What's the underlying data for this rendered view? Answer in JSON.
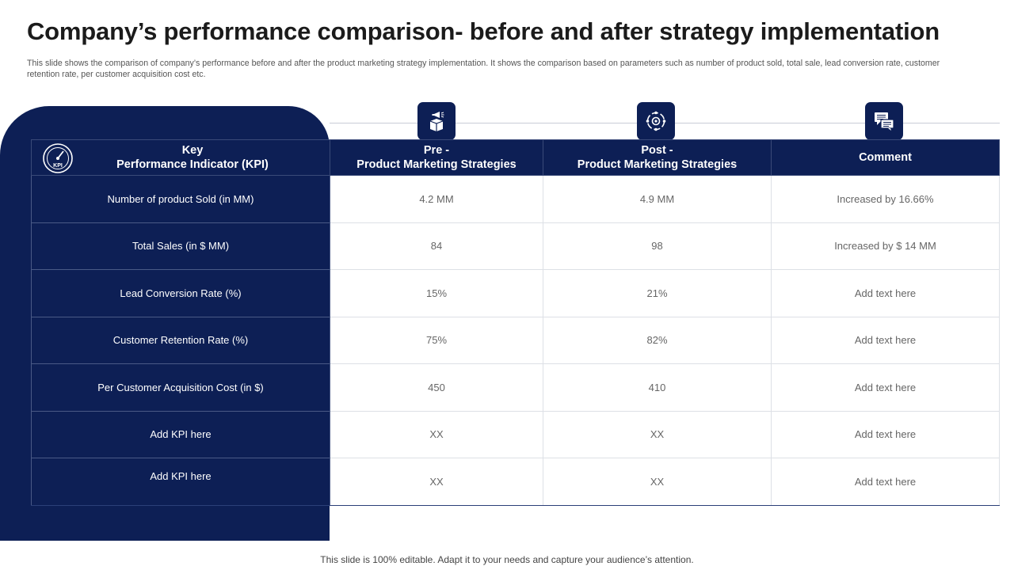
{
  "slide": {
    "title": "Company’s performance comparison- before and after strategy implementation",
    "subtitle": "This slide shows the comparison of company’s performance before and after the product marketing strategy implementation. It shows the comparison based on parameters such as number of product sold, total sale, lead conversion rate, customer retention rate, per customer acquisition cost etc.",
    "footer": "This slide is 100% editable. Adapt it to your needs and capture your audience’s attention."
  },
  "colors": {
    "navy": "#0d1f55",
    "border": "#dde0e6",
    "text_muted": "#666666"
  },
  "icons": {
    "kpi": {
      "name": "kpi-gauge-icon",
      "label": "KPI"
    },
    "pre": "megaphone-box-icon",
    "post": "strategy-cycle-icon",
    "comment": "chat-bubbles-icon"
  },
  "table": {
    "headers": {
      "kpi": [
        "Key",
        "Performance Indicator (KPI)"
      ],
      "pre": [
        "Pre -",
        "Product Marketing Strategies"
      ],
      "post": [
        "Post -",
        "Product Marketing Strategies"
      ],
      "comment": "Comment"
    },
    "rows": [
      {
        "kpi": "Number of product Sold (in MM)",
        "pre": "4.2 MM",
        "post": "4.9 MM",
        "comment": "Increased by 16.66%"
      },
      {
        "kpi": "Total Sales (in $ MM)",
        "pre": "84",
        "post": "98",
        "comment": "Increased by $ 14 MM"
      },
      {
        "kpi": "Lead Conversion Rate (%)",
        "pre": "15%",
        "post": "21%",
        "comment": "Add text here"
      },
      {
        "kpi": "Customer Retention Rate (%)",
        "pre": "75%",
        "post": "82%",
        "comment": "Add text here"
      },
      {
        "kpi": "Per Customer Acquisition Cost (in $)",
        "pre": "450",
        "post": "410",
        "comment": "Add text here"
      },
      {
        "kpi": "Add KPI here",
        "pre": "XX",
        "post": "XX",
        "comment": "Add text here"
      },
      {
        "kpi": "Add KPI here",
        "pre": "XX",
        "post": "XX",
        "comment": "Add text here"
      }
    ]
  }
}
